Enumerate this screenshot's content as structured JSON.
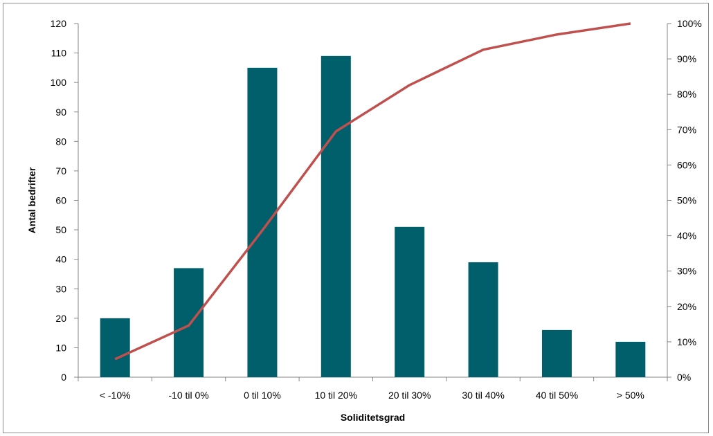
{
  "chart_data": {
    "type": "bar",
    "title": "",
    "xlabel": "Soliditetsgrad",
    "ylabel": "Antal bedrifter",
    "categories": [
      "< -10%",
      "-10 til 0%",
      "0 til 10%",
      "10 til 20%",
      "20 til 30%",
      "30 til 40%",
      "40 til 50%",
      "> 50%"
    ],
    "series": [
      {
        "values": [
          20,
          37,
          105,
          109,
          51,
          39,
          16,
          12
        ],
        "type": "bar",
        "axis": "left",
        "color": "#005f6b"
      },
      {
        "values": [
          5.1,
          14.6,
          41.5,
          69.5,
          82.6,
          92.6,
          96.9,
          100.0
        ],
        "type": "line",
        "axis": "right",
        "color": "#c0504d"
      }
    ],
    "ylim": [
      0,
      120
    ],
    "yticks": [
      0,
      10,
      20,
      30,
      40,
      50,
      60,
      70,
      80,
      90,
      100,
      110,
      120
    ],
    "y2lim": [
      0,
      100
    ],
    "y2ticks": [
      "0%",
      "10%",
      "20%",
      "30%",
      "40%",
      "50%",
      "60%",
      "70%",
      "80%",
      "90%",
      "100%"
    ],
    "grid": false,
    "legend": "none"
  }
}
